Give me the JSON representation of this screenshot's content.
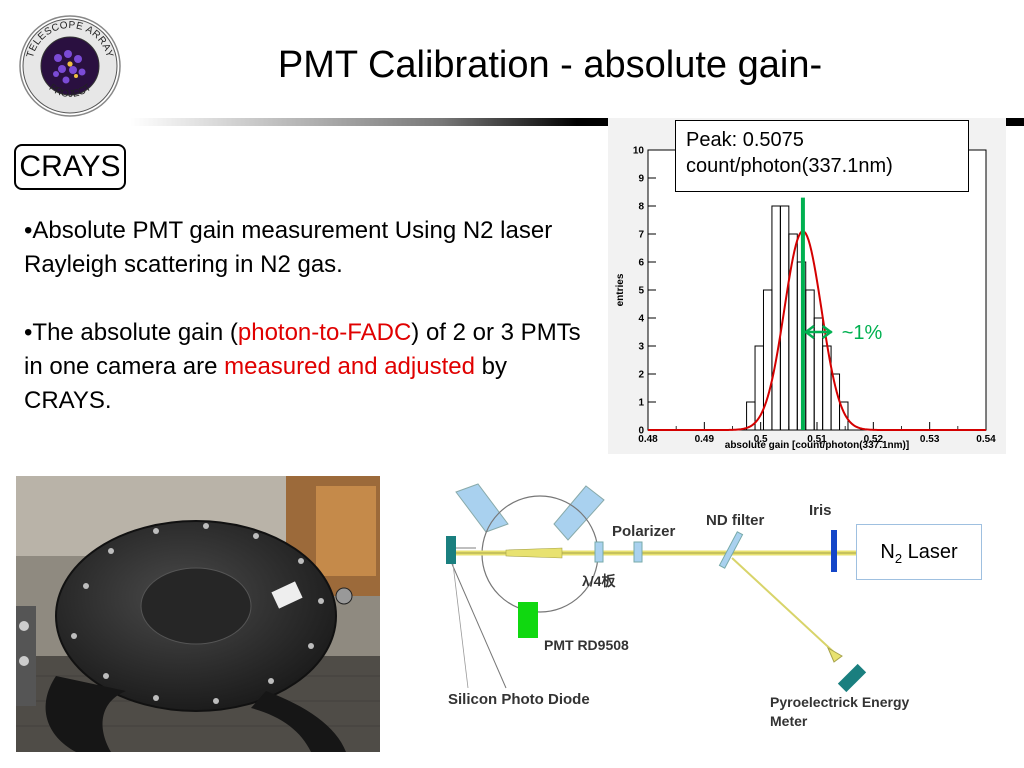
{
  "title": "PMT Calibration - absolute gain-",
  "logo": {
    "ring_text_top": "TELESCOPE ARRAY",
    "ring_text_bottom": "PROJECT"
  },
  "section_label": "CRAYS",
  "bullets": [
    {
      "text": "•Absolute PMT gain measurement Using N2 laser Rayleigh scattering in N2 gas."
    },
    {
      "pre": "•The absolute gain (",
      "red1": "photon-to-FADC",
      "mid": ") of 2 or 3 PMTs in one camera are ",
      "red2": "measured and adjusted",
      "post": " by CRAYS."
    }
  ],
  "peak_box": {
    "line1": "Peak: 0.5075",
    "line2": "count/photon(337.1nm)"
  },
  "width_annotation": "~1%",
  "colors": {
    "red_text": "#e00000",
    "fit_curve": "#d40000",
    "peak_line": "#00b050",
    "arrow": "#00b050",
    "width_label": "#00b050"
  },
  "chart_data": {
    "type": "bar",
    "xlabel": "absolute gain [count/photon(337.1nm)]",
    "ylabel": "entries",
    "xlim": [
      0.48,
      0.54
    ],
    "ylim": [
      0,
      10
    ],
    "x_ticks": [
      "0.48",
      "0.49",
      "0.5",
      "0.51",
      "0.52",
      "0.53",
      "0.54"
    ],
    "y_ticks": [
      "0",
      "1",
      "2",
      "3",
      "4",
      "5",
      "6",
      "7",
      "8",
      "9",
      "10"
    ],
    "bin_width": 0.0015,
    "bins": [
      {
        "x0": 0.4975,
        "y": 1
      },
      {
        "x0": 0.499,
        "y": 3
      },
      {
        "x0": 0.5005,
        "y": 5
      },
      {
        "x0": 0.502,
        "y": 8
      },
      {
        "x0": 0.5035,
        "y": 8
      },
      {
        "x0": 0.505,
        "y": 7
      },
      {
        "x0": 0.5065,
        "y": 6
      },
      {
        "x0": 0.508,
        "y": 5
      },
      {
        "x0": 0.5095,
        "y": 4
      },
      {
        "x0": 0.511,
        "y": 3
      },
      {
        "x0": 0.5125,
        "y": 2
      },
      {
        "x0": 0.514,
        "y": 1
      }
    ],
    "fit": {
      "type": "gaussian",
      "mean": 0.5075,
      "sigma": 0.0033,
      "amplitude": 7.1
    },
    "peak_x": 0.5075,
    "grid": false
  },
  "diagram": {
    "labels": {
      "polarizer": "Polarizer",
      "nd_filter": "ND filter",
      "iris": "Iris",
      "lambda_plate": "λ/4板",
      "pmt": "PMT RD9508",
      "photodiode": "Silicon Photo Diode",
      "energy_meter_1": "Pyroelectrick Energy",
      "energy_meter_2": "Meter"
    },
    "laser": {
      "prefix": "N",
      "subscript": "2",
      "suffix": " Laser"
    }
  }
}
